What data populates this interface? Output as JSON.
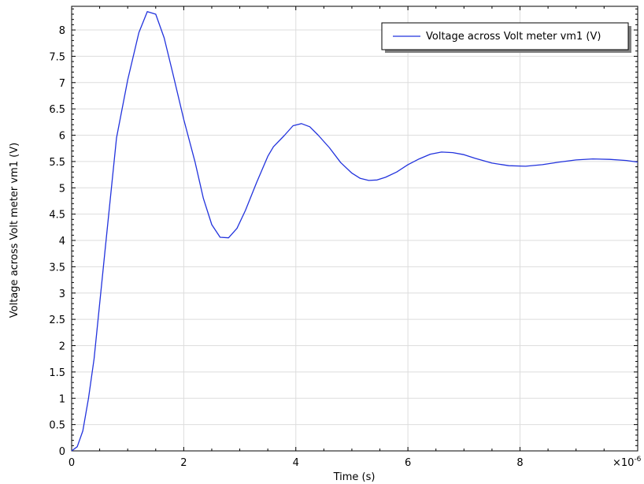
{
  "chart_data": {
    "type": "line",
    "xlabel": "Time (s)",
    "ylabel": "Voltage across Volt meter vm1 (V)",
    "x_multiplier": "×10",
    "x_multiplier_exp": "-6",
    "xlim": [
      0,
      10.1
    ],
    "ylim": [
      0,
      8.45
    ],
    "grid": true,
    "legend_position": "top-right",
    "x_ticks": [
      0,
      2,
      4,
      6,
      8
    ],
    "x_tick_labels": [
      "0",
      "2",
      "4",
      "6",
      "8"
    ],
    "y_ticks": [
      0,
      0.5,
      1,
      1.5,
      2,
      2.5,
      3,
      3.5,
      4,
      4.5,
      5,
      5.5,
      6,
      6.5,
      7,
      7.5,
      8
    ],
    "y_tick_labels": [
      "0",
      "0.5",
      "1",
      "1.5",
      "2",
      "2.5",
      "3",
      "3.5",
      "4",
      "4.5",
      "5",
      "5.5",
      "6",
      "6.5",
      "7",
      "7.5",
      "8"
    ],
    "series": [
      {
        "name": "Voltage across Volt meter vm1 (V)",
        "color": "#2233dd",
        "x": [
          0,
          0.1,
          0.2,
          0.3,
          0.4,
          0.6,
          0.8,
          1.0,
          1.2,
          1.35,
          1.5,
          1.65,
          1.8,
          2.0,
          2.2,
          2.35,
          2.5,
          2.65,
          2.8,
          2.95,
          3.1,
          3.3,
          3.5,
          3.6,
          3.8,
          3.95,
          4.1,
          4.25,
          4.4,
          4.6,
          4.8,
          5.0,
          5.15,
          5.3,
          5.45,
          5.6,
          5.8,
          6.0,
          6.2,
          6.4,
          6.6,
          6.8,
          7.0,
          7.2,
          7.5,
          7.8,
          8.1,
          8.4,
          8.7,
          9.0,
          9.3,
          9.6,
          9.9,
          10.1
        ],
        "y": [
          0,
          0.08,
          0.38,
          1.0,
          1.75,
          3.85,
          5.95,
          7.05,
          7.95,
          8.35,
          8.3,
          7.85,
          7.2,
          6.3,
          5.5,
          4.8,
          4.3,
          4.06,
          4.05,
          4.23,
          4.57,
          5.1,
          5.6,
          5.78,
          6.0,
          6.18,
          6.22,
          6.16,
          6.0,
          5.76,
          5.48,
          5.28,
          5.18,
          5.14,
          5.15,
          5.2,
          5.3,
          5.44,
          5.55,
          5.64,
          5.68,
          5.67,
          5.63,
          5.56,
          5.47,
          5.42,
          5.41,
          5.44,
          5.49,
          5.53,
          5.55,
          5.54,
          5.52,
          5.49
        ]
      }
    ]
  }
}
